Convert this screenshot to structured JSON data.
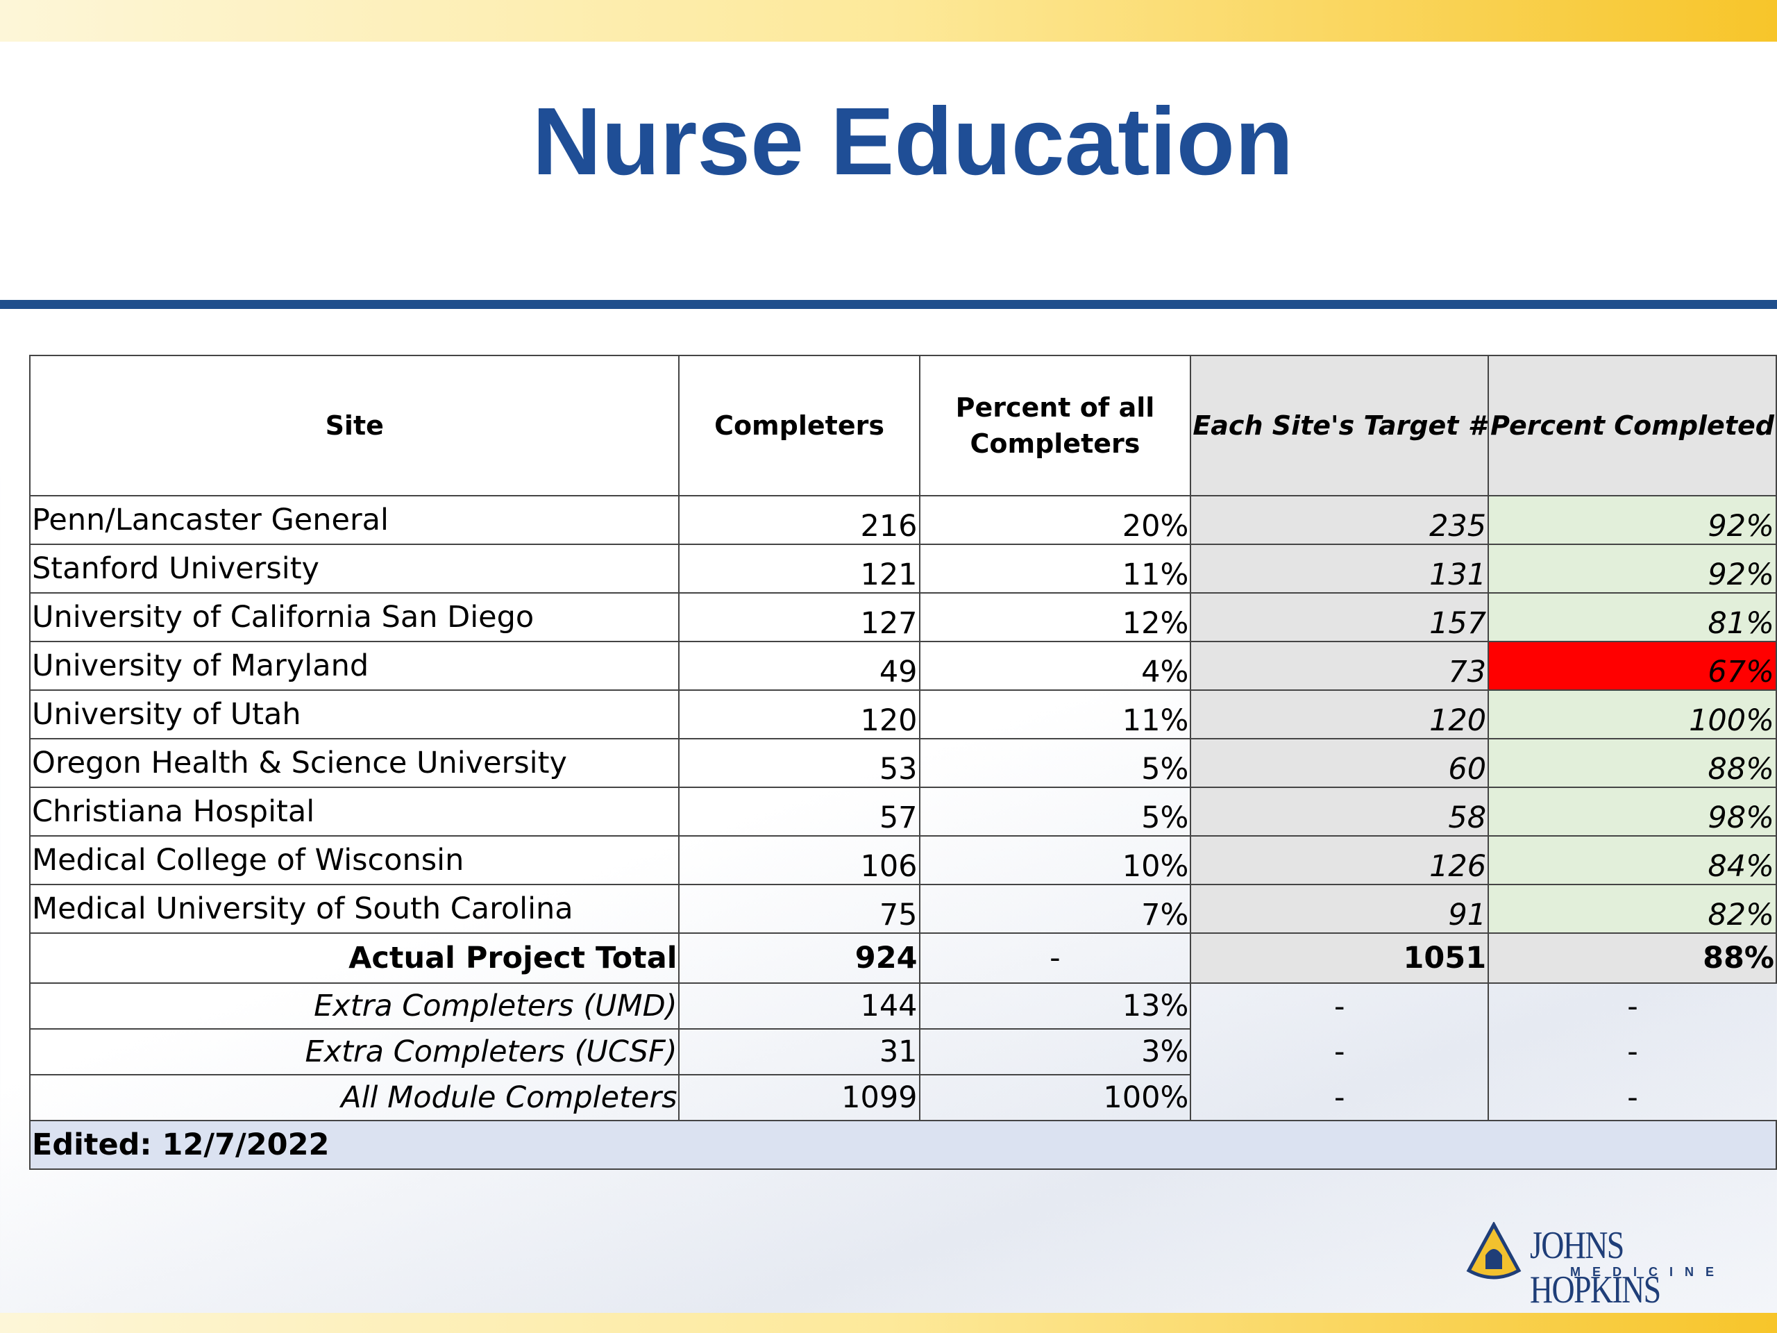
{
  "title": "Nurse Education",
  "table": {
    "header": [
      "Site",
      "Completers",
      "Percent of all Completers",
      "Each Site's Target #",
      "Percent Completed"
    ],
    "rows": [
      [
        "Penn/Lancaster General",
        "216",
        "20%",
        "235",
        "92%"
      ],
      [
        "Stanford University",
        "121",
        "11%",
        "131",
        "92%"
      ],
      [
        "University of California San Diego",
        "127",
        "12%",
        "157",
        "81%"
      ],
      [
        "University of Maryland",
        "49",
        "4%",
        "73",
        "67%"
      ],
      [
        "University of Utah",
        "120",
        "11%",
        "120",
        "100%"
      ],
      [
        "Oregon Health & Science University",
        "53",
        "5%",
        "60",
        "88%"
      ],
      [
        "Christiana Hospital",
        "57",
        "5%",
        "58",
        "98%"
      ],
      [
        "Medical College of Wisconsin",
        "106",
        "10%",
        "126",
        "84%"
      ],
      [
        "Medical University of South Carolina",
        "75",
        "7%",
        "91",
        "82%"
      ]
    ],
    "total": [
      "Actual Project Total",
      "924",
      "-",
      "1051",
      "88%"
    ],
    "extra_rows": [
      [
        "Extra Completers (UMD)",
        "144",
        "13%",
        "-",
        "-"
      ],
      [
        "Extra Completers (UCSF)",
        "31",
        "3%",
        "-",
        "-"
      ],
      [
        "All Module Completers",
        "1099",
        "100%",
        "-",
        "-"
      ]
    ],
    "footer": "Edited: 12/7/2022"
  },
  "logo": {
    "name": "JOHNS HOPKINS",
    "sub": "MEDICINE"
  }
}
